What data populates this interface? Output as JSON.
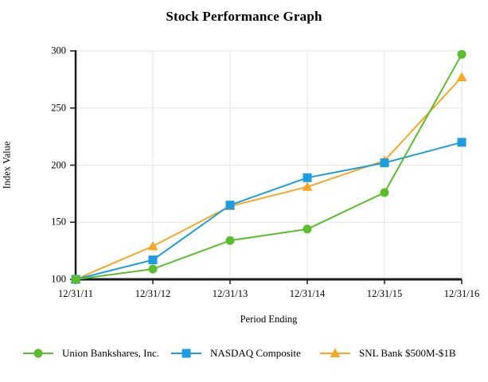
{
  "chart_data": {
    "type": "line",
    "title": "Stock Performance Graph",
    "xlabel": "Period Ending",
    "ylabel": "Index Value",
    "categories": [
      "12/31/11",
      "12/31/12",
      "12/31/13",
      "12/31/14",
      "12/31/15",
      "12/31/16"
    ],
    "series": [
      {
        "name": "Union Bankshares, Inc.",
        "marker": "circle",
        "color": "#5ABD2B",
        "values": [
          100,
          109,
          134,
          144,
          176,
          297
        ]
      },
      {
        "name": "NASDAQ Composite",
        "marker": "square",
        "color": "#1E9CE0",
        "values": [
          100,
          117,
          165,
          189,
          202,
          220
        ]
      },
      {
        "name": "SNL Bank $500M-$1B",
        "marker": "triangle",
        "color": "#F7A626",
        "values": [
          100,
          129,
          164,
          181,
          204,
          277
        ]
      }
    ],
    "yticks": [
      100,
      150,
      200,
      250,
      300
    ],
    "ylim": [
      100,
      300
    ],
    "grid": "on",
    "legend_position": "bottom",
    "colors": {
      "grid": "#E3E3E3",
      "axis": "#1A1A1A",
      "text": "#000000"
    }
  }
}
